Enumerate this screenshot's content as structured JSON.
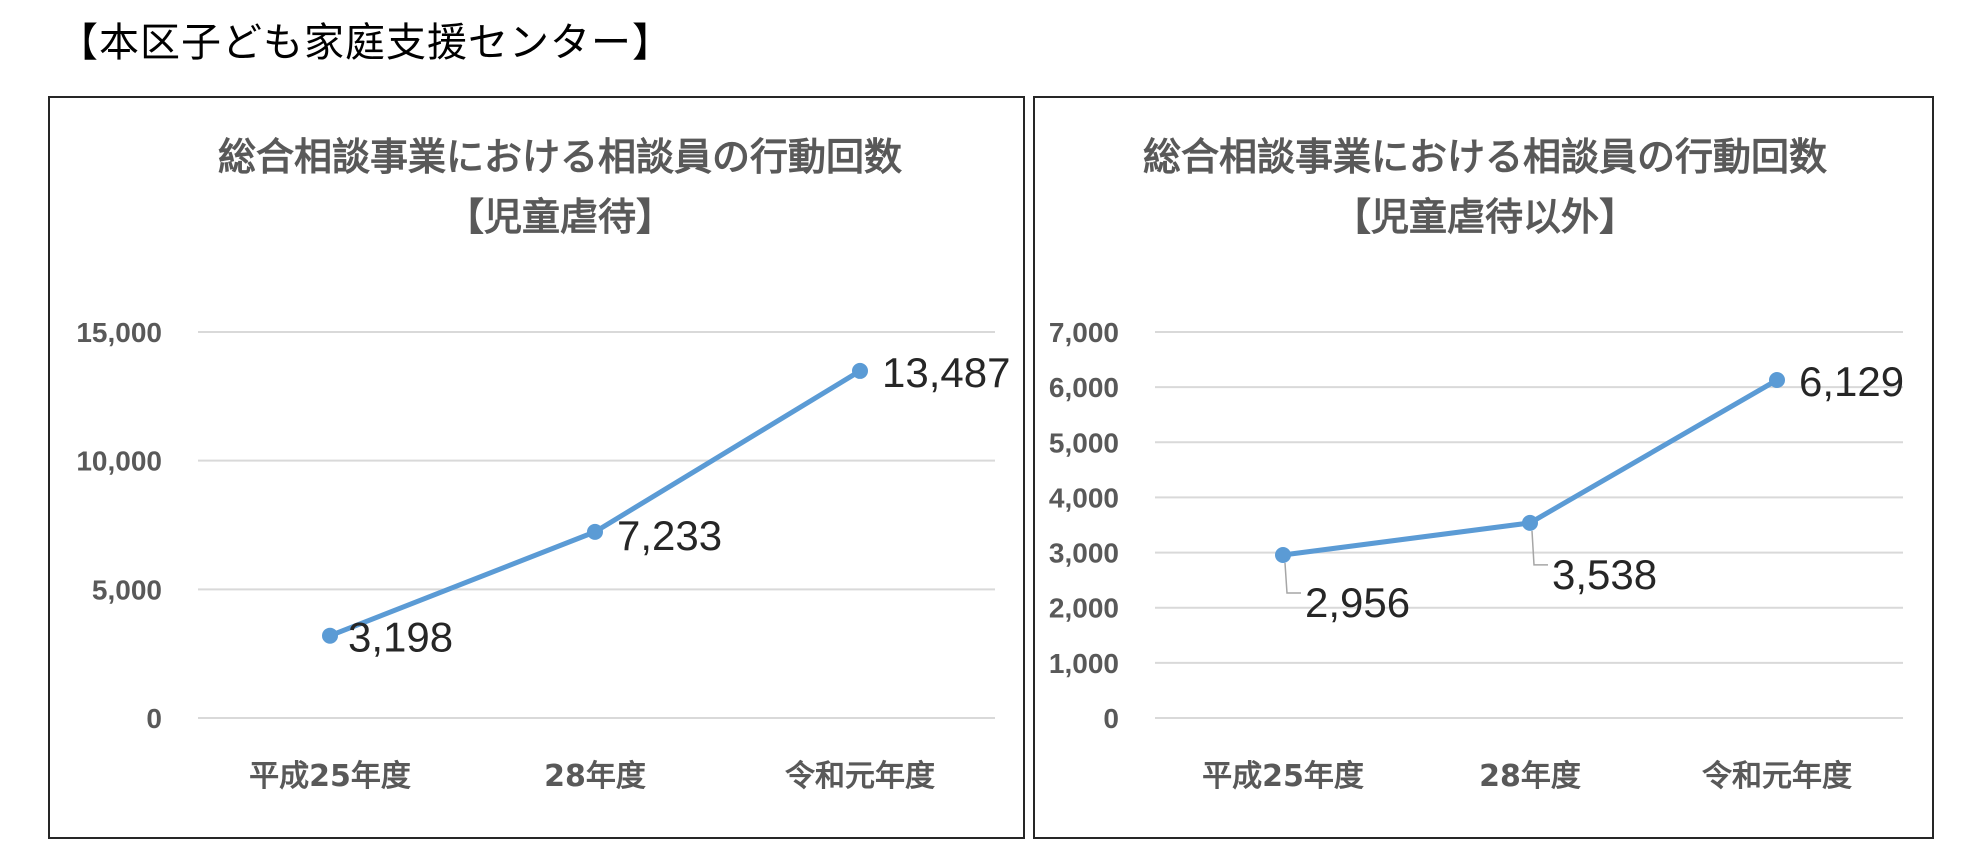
{
  "heading": "【本区子ども家庭支援センター】",
  "chart_data": [
    {
      "type": "line",
      "title": "総合相談事業における相談員の行動回数",
      "subtitle": "【児童虐待】",
      "categories": [
        "平成25年度",
        "28年度",
        "令和元年度"
      ],
      "series": [
        {
          "values": [
            3198,
            7233,
            13487
          ],
          "color": "#5b9bd5"
        }
      ],
      "data_labels": [
        "3,198",
        "7,233",
        "13,487"
      ],
      "ylim": [
        0,
        15000
      ],
      "yticks": [
        0,
        5000,
        10000,
        15000
      ],
      "ytick_labels": [
        "0",
        "5,000",
        "10,000",
        "15,000"
      ],
      "xlabel": "",
      "ylabel": "",
      "grid": true,
      "legend": "none"
    },
    {
      "type": "line",
      "title": "総合相談事業における相談員の行動回数",
      "subtitle": "【児童虐待以外】",
      "categories": [
        "平成25年度",
        "28年度",
        "令和元年度"
      ],
      "series": [
        {
          "values": [
            2956,
            3538,
            6129
          ],
          "color": "#5b9bd5"
        }
      ],
      "data_labels": [
        "2,956",
        "3,538",
        "6,129"
      ],
      "ylim": [
        0,
        7000
      ],
      "yticks": [
        0,
        1000,
        2000,
        3000,
        4000,
        5000,
        6000,
        7000
      ],
      "ytick_labels": [
        "0",
        "1,000",
        "2,000",
        "3,000",
        "4,000",
        "5,000",
        "6,000",
        "7,000"
      ],
      "xlabel": "",
      "ylabel": "",
      "grid": true,
      "legend": "none"
    }
  ]
}
